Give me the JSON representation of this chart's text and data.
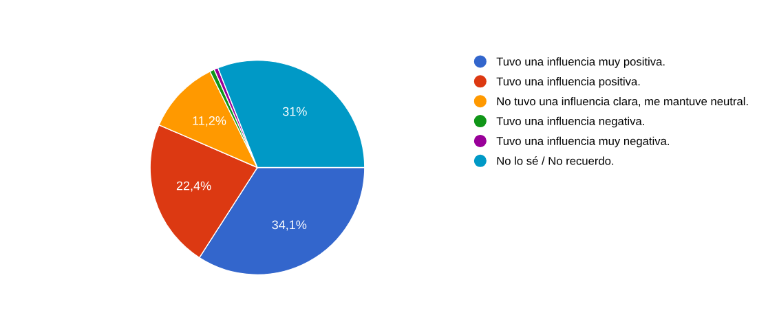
{
  "chart_data": {
    "type": "pie",
    "categories": [
      "Tuvo una influencia muy positiva.",
      "Tuvo una influencia positiva.",
      "No tuvo una influencia clara, me mantuve neutral.",
      "Tuvo una influencia negativa.",
      "Tuvo una influencia muy negativa.",
      "No lo sé / No recuerdo."
    ],
    "values": [
      34.1,
      22.4,
      11.2,
      0.7,
      0.6,
      31
    ],
    "colors": [
      "#3366cc",
      "#dc3912",
      "#ff9900",
      "#109618",
      "#990099",
      "#0099c6"
    ],
    "value_labels": [
      "34,1%",
      "22,4%",
      "11,2%",
      null,
      null,
      "31%"
    ],
    "legend": "right"
  }
}
